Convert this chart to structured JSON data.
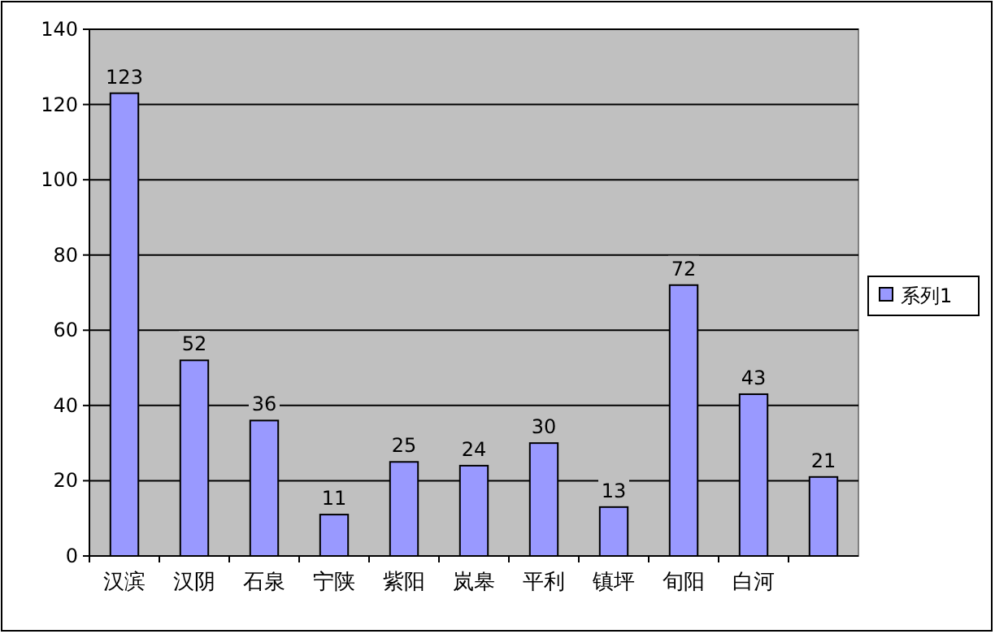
{
  "chart_data": {
    "type": "bar",
    "categories": [
      "汉滨",
      "汉阴",
      "石泉",
      "宁陕",
      "紫阳",
      "岚皋",
      "平利",
      "镇坪",
      "旬阳",
      "白河",
      null
    ],
    "series": [
      {
        "name": "系列1",
        "color": "#9999ff",
        "values": [
          123,
          52,
          36,
          11,
          25,
          24,
          30,
          13,
          72,
          43,
          21
        ]
      }
    ],
    "ylim": [
      0,
      140
    ],
    "yticks": [
      0,
      20,
      40,
      60,
      80,
      100,
      120,
      140
    ],
    "grid": "y",
    "legend": "right",
    "data_labels": true
  }
}
